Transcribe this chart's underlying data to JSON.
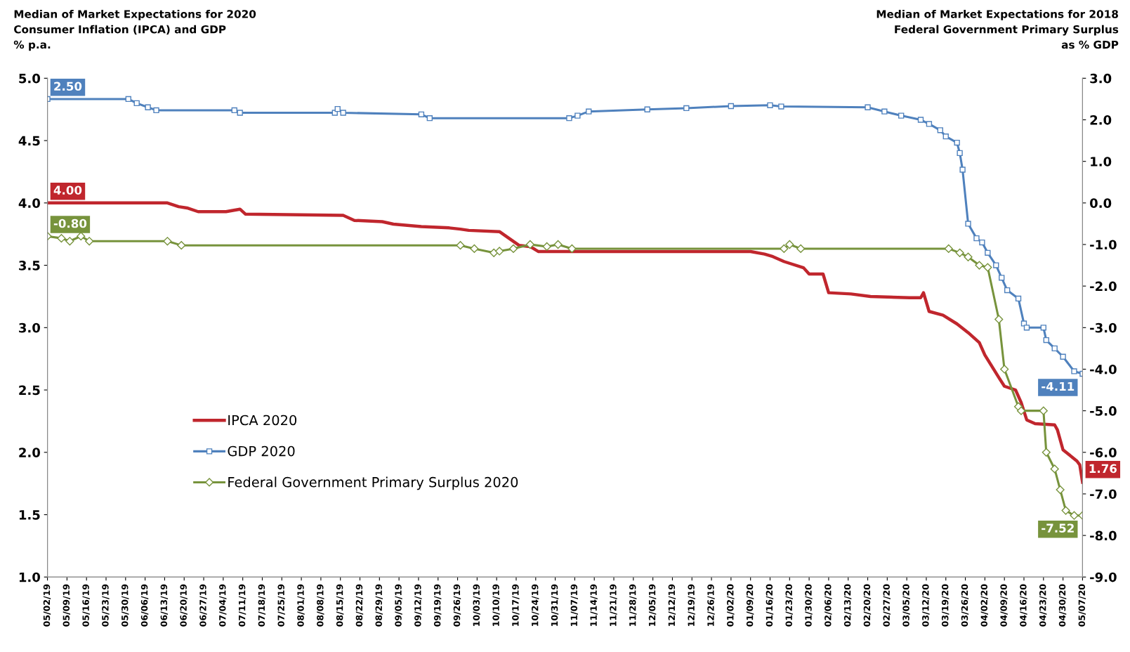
{
  "chart_data": {
    "type": "line",
    "ylabel": "Median of Market Expectations for 2020\nConsumer Inflation (IPCA) and GDP\n% p.a.",
    "y2label": "Median of Market Expectations for 2018\nFederal Government Primary Surplus\nas % GDP",
    "ylim": [
      1.0,
      5.0
    ],
    "yticks": [
      {
        "value": 1.0,
        "label": "1.0"
      },
      {
        "value": 1.5,
        "label": "1.5"
      },
      {
        "value": 2.0,
        "label": "2.0"
      },
      {
        "value": 2.5,
        "label": "2.5"
      },
      {
        "value": 3.0,
        "label": "3.0"
      },
      {
        "value": 3.5,
        "label": "3.5"
      },
      {
        "value": 4.0,
        "label": "4.0"
      },
      {
        "value": 4.5,
        "label": "4.5"
      },
      {
        "value": 5.0,
        "label": "5.0"
      }
    ],
    "y2lim": [
      -9.0,
      3.0
    ],
    "y2ticks": [
      {
        "value": -9,
        "label": "-9.0"
      },
      {
        "value": -8,
        "label": "-8.0"
      },
      {
        "value": -7,
        "label": "-7.0"
      },
      {
        "value": -6,
        "label": "-6.0"
      },
      {
        "value": -5,
        "label": "-5.0"
      },
      {
        "value": -4,
        "label": "-4.0"
      },
      {
        "value": -3,
        "label": "-3.0"
      },
      {
        "value": -2,
        "label": "-2.0"
      },
      {
        "value": -1,
        "label": "-1.0"
      },
      {
        "value": 0,
        "label": "0.0"
      },
      {
        "value": 1,
        "label": "1.0"
      },
      {
        "value": 2,
        "label": "2.0"
      },
      {
        "value": 3,
        "label": "3.0"
      }
    ],
    "xlim": [
      "2019-05-02",
      "2020-05-07"
    ],
    "xticks": [
      {
        "value": "2019-05-02",
        "label": "05/02/19"
      },
      {
        "value": "2019-05-09",
        "label": "05/09/19"
      },
      {
        "value": "2019-05-16",
        "label": "05/16/19"
      },
      {
        "value": "2019-05-23",
        "label": "05/23/19"
      },
      {
        "value": "2019-05-30",
        "label": "05/30/19"
      },
      {
        "value": "2019-06-06",
        "label": "06/06/19"
      },
      {
        "value": "2019-06-13",
        "label": "06/13/19"
      },
      {
        "value": "2019-06-20",
        "label": "06/20/19"
      },
      {
        "value": "2019-06-27",
        "label": "06/27/19"
      },
      {
        "value": "2019-07-04",
        "label": "07/04/19"
      },
      {
        "value": "2019-07-11",
        "label": "07/11/19"
      },
      {
        "value": "2019-07-18",
        "label": "07/18/19"
      },
      {
        "value": "2019-07-25",
        "label": "07/25/19"
      },
      {
        "value": "2019-08-01",
        "label": "08/01/19"
      },
      {
        "value": "2019-08-08",
        "label": "08/08/19"
      },
      {
        "value": "2019-08-15",
        "label": "08/15/19"
      },
      {
        "value": "2019-08-22",
        "label": "08/22/19"
      },
      {
        "value": "2019-08-29",
        "label": "08/29/19"
      },
      {
        "value": "2019-09-05",
        "label": "09/05/19"
      },
      {
        "value": "2019-09-12",
        "label": "09/12/19"
      },
      {
        "value": "2019-09-19",
        "label": "09/19/19"
      },
      {
        "value": "2019-09-26",
        "label": "09/26/19"
      },
      {
        "value": "2019-10-03",
        "label": "10/03/19"
      },
      {
        "value": "2019-10-10",
        "label": "10/10/19"
      },
      {
        "value": "2019-10-17",
        "label": "10/17/19"
      },
      {
        "value": "2019-10-24",
        "label": "10/24/19"
      },
      {
        "value": "2019-10-31",
        "label": "10/31/19"
      },
      {
        "value": "2019-11-07",
        "label": "11/07/19"
      },
      {
        "value": "2019-11-14",
        "label": "11/14/19"
      },
      {
        "value": "2019-11-21",
        "label": "11/21/19"
      },
      {
        "value": "2019-11-28",
        "label": "11/28/19"
      },
      {
        "value": "2019-12-05",
        "label": "12/05/19"
      },
      {
        "value": "2019-12-12",
        "label": "12/12/19"
      },
      {
        "value": "2019-12-19",
        "label": "12/19/19"
      },
      {
        "value": "2019-12-26",
        "label": "12/26/19"
      },
      {
        "value": "2020-01-02",
        "label": "01/02/20"
      },
      {
        "value": "2020-01-09",
        "label": "01/09/20"
      },
      {
        "value": "2020-01-16",
        "label": "01/16/20"
      },
      {
        "value": "2020-01-23",
        "label": "01/23/20"
      },
      {
        "value": "2020-01-30",
        "label": "01/30/20"
      },
      {
        "value": "2020-02-06",
        "label": "02/06/20"
      },
      {
        "value": "2020-02-13",
        "label": "02/13/20"
      },
      {
        "value": "2020-02-20",
        "label": "02/20/20"
      },
      {
        "value": "2020-02-27",
        "label": "02/27/20"
      },
      {
        "value": "2020-03-05",
        "label": "03/05/20"
      },
      {
        "value": "2020-03-12",
        "label": "03/12/20"
      },
      {
        "value": "2020-03-19",
        "label": "03/19/20"
      },
      {
        "value": "2020-03-26",
        "label": "03/26/20"
      },
      {
        "value": "2020-04-02",
        "label": "04/02/20"
      },
      {
        "value": "2020-04-09",
        "label": "04/09/20"
      },
      {
        "value": "2020-04-16",
        "label": "04/16/20"
      },
      {
        "value": "2020-04-23",
        "label": "04/23/20"
      },
      {
        "value": "2020-04-30",
        "label": "04/30/20"
      },
      {
        "value": "2020-05-07",
        "label": "05/07/20"
      }
    ],
    "grid": false,
    "legend": "left",
    "series": [
      {
        "name": "IPCA 2020",
        "color": "#c0262d",
        "marker": "none",
        "axis": "y",
        "x": [
          "2019-05-02",
          "2019-06-14",
          "2019-06-18",
          "2019-06-21",
          "2019-06-25",
          "2019-07-05",
          "2019-07-10",
          "2019-07-12",
          "2019-08-16",
          "2019-08-20",
          "2019-08-30",
          "2019-09-03",
          "2019-09-13",
          "2019-09-23",
          "2019-09-27",
          "2019-09-30",
          "2019-10-11",
          "2019-10-18",
          "2019-10-22",
          "2019-10-25",
          "2020-01-09",
          "2020-01-14",
          "2020-01-17",
          "2020-01-21",
          "2020-01-28",
          "2020-01-30",
          "2020-02-04",
          "2020-02-06",
          "2020-02-14",
          "2020-02-21",
          "2020-03-06",
          "2020-03-10",
          "2020-03-11",
          "2020-03-13",
          "2020-03-18",
          "2020-03-23",
          "2020-03-27",
          "2020-03-31",
          "2020-04-02",
          "2020-04-07",
          "2020-04-09",
          "2020-04-13",
          "2020-04-15",
          "2020-04-17",
          "2020-04-20",
          "2020-04-27",
          "2020-04-28",
          "2020-04-30",
          "2020-05-05",
          "2020-05-06",
          "2020-05-07"
        ],
        "values": [
          4.0,
          4.0,
          3.97,
          3.96,
          3.93,
          3.93,
          3.95,
          3.91,
          3.9,
          3.86,
          3.85,
          3.83,
          3.81,
          3.8,
          3.79,
          3.78,
          3.77,
          3.66,
          3.65,
          3.61,
          3.61,
          3.59,
          3.57,
          3.53,
          3.48,
          3.43,
          3.43,
          3.28,
          3.27,
          3.25,
          3.24,
          3.24,
          3.28,
          3.13,
          3.1,
          3.03,
          2.96,
          2.88,
          2.78,
          2.6,
          2.53,
          2.5,
          2.4,
          2.26,
          2.23,
          2.22,
          2.18,
          2.02,
          1.93,
          1.9,
          1.76
        ],
        "value_labels": [
          "4.00",
          null,
          null,
          null,
          null,
          null,
          null,
          null,
          null,
          null,
          null,
          null,
          null,
          null,
          null,
          null,
          null,
          null,
          null,
          null,
          null,
          null,
          null,
          null,
          null,
          null,
          null,
          null,
          null,
          null,
          null,
          null,
          null,
          null,
          null,
          null,
          null,
          null,
          null,
          null,
          null,
          null,
          null,
          null,
          null,
          null,
          null,
          null,
          null,
          null,
          "1.76"
        ]
      },
      {
        "name": "GDP 2020",
        "color": "#4f81bd",
        "marker": "square",
        "axis": "y2",
        "x": [
          "2019-05-02",
          "2019-05-31",
          "2019-06-03",
          "2019-06-07",
          "2019-06-10",
          "2019-07-08",
          "2019-07-10",
          "2019-08-13",
          "2019-08-14",
          "2019-08-16",
          "2019-09-13",
          "2019-09-16",
          "2019-11-05",
          "2019-11-08",
          "2019-11-12",
          "2019-12-03",
          "2019-12-17",
          "2020-01-02",
          "2020-01-16",
          "2020-01-20",
          "2020-02-20",
          "2020-02-26",
          "2020-03-03",
          "2020-03-10",
          "2020-03-13",
          "2020-03-17",
          "2020-03-19",
          "2020-03-23",
          "2020-03-24",
          "2020-03-25",
          "2020-03-27",
          "2020-03-30",
          "2020-04-01",
          "2020-04-03",
          "2020-04-06",
          "2020-04-08",
          "2020-04-10",
          "2020-04-14",
          "2020-04-16",
          "2020-04-17",
          "2020-04-23",
          "2020-04-24",
          "2020-04-27",
          "2020-04-30",
          "2020-05-04",
          "2020-05-07"
        ],
        "values": [
          2.5,
          2.5,
          2.4,
          2.3,
          2.23,
          2.23,
          2.17,
          2.17,
          2.26,
          2.17,
          2.13,
          2.04,
          2.04,
          2.1,
          2.2,
          2.25,
          2.28,
          2.33,
          2.35,
          2.32,
          2.3,
          2.2,
          2.1,
          2.0,
          1.9,
          1.75,
          1.6,
          1.45,
          1.2,
          0.8,
          -0.5,
          -0.85,
          -0.95,
          -1.2,
          -1.5,
          -1.8,
          -2.1,
          -2.3,
          -2.9,
          -3.0,
          -3.0,
          -3.3,
          -3.5,
          -3.7,
          -4.05,
          -4.11
        ],
        "value_labels": [
          "2.50",
          null,
          null,
          null,
          null,
          null,
          null,
          null,
          null,
          null,
          null,
          null,
          null,
          null,
          null,
          null,
          null,
          null,
          null,
          null,
          null,
          null,
          null,
          null,
          null,
          null,
          null,
          null,
          null,
          null,
          null,
          null,
          null,
          null,
          null,
          null,
          null,
          null,
          null,
          null,
          null,
          null,
          null,
          null,
          null,
          "-4.11"
        ]
      },
      {
        "name": "Federal Government Primary Surplus 2020",
        "color": "#77933c",
        "marker": "diamond",
        "axis": "y2",
        "x": [
          "2019-05-02",
          "2019-05-07",
          "2019-05-10",
          "2019-05-14",
          "2019-05-17",
          "2019-06-14",
          "2019-06-19",
          "2019-09-27",
          "2019-10-02",
          "2019-10-09",
          "2019-10-11",
          "2019-10-16",
          "2019-10-22",
          "2019-10-28",
          "2019-11-01",
          "2019-11-06",
          "2020-01-21",
          "2020-01-23",
          "2020-01-27",
          "2020-03-20",
          "2020-03-24",
          "2020-03-27",
          "2020-03-31",
          "2020-04-03",
          "2020-04-07",
          "2020-04-09",
          "2020-04-14",
          "2020-04-15",
          "2020-04-23",
          "2020-04-24",
          "2020-04-27",
          "2020-04-29",
          "2020-05-01",
          "2020-05-04",
          "2020-05-07"
        ],
        "values": [
          -0.8,
          -0.85,
          -0.92,
          -0.8,
          -0.92,
          -0.92,
          -1.02,
          -1.02,
          -1.1,
          -1.2,
          -1.16,
          -1.1,
          -1.0,
          -1.05,
          -1.0,
          -1.1,
          -1.1,
          -1.0,
          -1.1,
          -1.1,
          -1.2,
          -1.3,
          -1.5,
          -1.55,
          -2.8,
          -4.0,
          -4.9,
          -5.0,
          -5.0,
          -6.0,
          -6.4,
          -6.9,
          -7.4,
          -7.52,
          -7.52
        ],
        "value_labels": [
          "-0.80",
          null,
          null,
          null,
          null,
          null,
          null,
          null,
          null,
          null,
          null,
          null,
          null,
          null,
          null,
          null,
          null,
          null,
          null,
          null,
          null,
          null,
          null,
          null,
          null,
          null,
          null,
          null,
          null,
          null,
          null,
          null,
          null,
          null,
          "-7.52"
        ]
      }
    ]
  }
}
